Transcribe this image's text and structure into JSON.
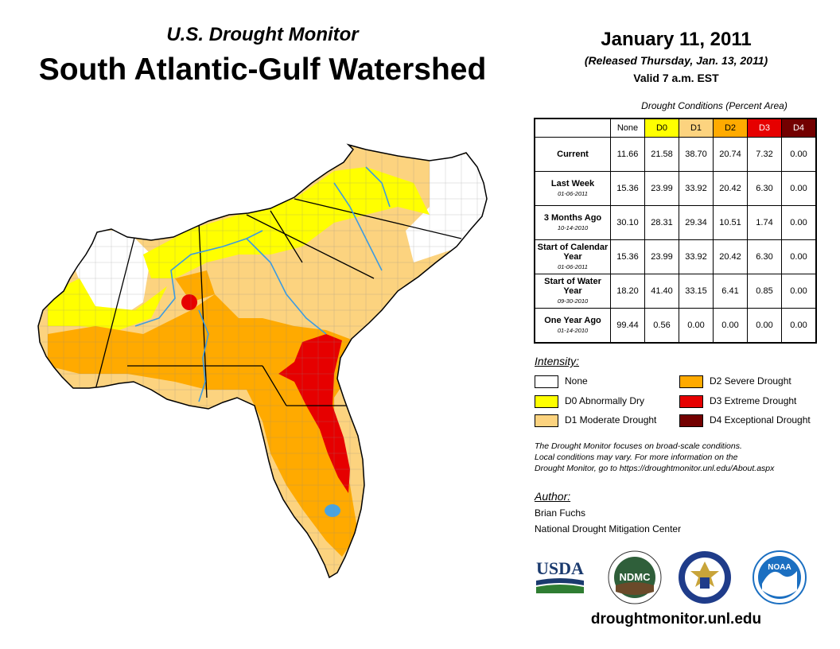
{
  "header": {
    "subtitle": "U.S. Drought Monitor",
    "title": "South Atlantic-Gulf Watershed"
  },
  "release": {
    "date": "January 11, 2011",
    "released": "(Released Thursday, Jan. 13, 2011)",
    "valid": "Valid 7 a.m. EST"
  },
  "conditions": {
    "title": "Drought Conditions (Percent Area)",
    "columns": [
      {
        "label": "None",
        "color": "#ffffff",
        "text_color": "#000000"
      },
      {
        "label": "D0",
        "color": "#ffff00",
        "text_color": "#000000"
      },
      {
        "label": "D1",
        "color": "#fcd37f",
        "text_color": "#000000"
      },
      {
        "label": "D2",
        "color": "#ffaa00",
        "text_color": "#000000"
      },
      {
        "label": "D3",
        "color": "#e60000",
        "text_color": "#ffffff"
      },
      {
        "label": "D4",
        "color": "#730000",
        "text_color": "#ffffff"
      }
    ],
    "rows": [
      {
        "label": "Current",
        "sub": "",
        "values": [
          "11.66",
          "21.58",
          "38.70",
          "20.74",
          "7.32",
          "0.00"
        ]
      },
      {
        "label": "Last Week",
        "sub": "01-06-2011",
        "values": [
          "15.36",
          "23.99",
          "33.92",
          "20.42",
          "6.30",
          "0.00"
        ]
      },
      {
        "label": "3 Months Ago",
        "sub": "10-14-2010",
        "values": [
          "30.10",
          "28.31",
          "29.34",
          "10.51",
          "1.74",
          "0.00"
        ]
      },
      {
        "label": "Start of Calendar Year",
        "sub": "01-06-2011",
        "values": [
          "15.36",
          "23.99",
          "33.92",
          "20.42",
          "6.30",
          "0.00"
        ]
      },
      {
        "label": "Start of Water Year",
        "sub": "09-30-2010",
        "values": [
          "18.20",
          "41.40",
          "33.15",
          "6.41",
          "0.85",
          "0.00"
        ]
      },
      {
        "label": "One Year Ago",
        "sub": "01-14-2010",
        "values": [
          "99.44",
          "0.56",
          "0.00",
          "0.00",
          "0.00",
          "0.00"
        ]
      }
    ]
  },
  "legend": {
    "title": "Intensity:",
    "items": [
      {
        "label": "None",
        "color": "#ffffff"
      },
      {
        "label": "D0 Abnormally Dry",
        "color": "#ffff00"
      },
      {
        "label": "D1 Moderate Drought",
        "color": "#fcd37f"
      },
      {
        "label": "D2 Severe Drought",
        "color": "#ffaa00"
      },
      {
        "label": "D3 Extreme Drought",
        "color": "#e60000"
      },
      {
        "label": "D4 Exceptional Drought",
        "color": "#730000"
      }
    ]
  },
  "note": {
    "line1": "The Drought Monitor focuses on broad-scale conditions.",
    "line2": "Local conditions may vary. For more information on the",
    "line3": "Drought Monitor, go to https://droughtmonitor.unl.edu/About.aspx"
  },
  "author": {
    "heading": "Author:",
    "name": "Brian Fuchs",
    "org": "National Drought Mitigation Center"
  },
  "logos": {
    "usda": "USDA",
    "ndmc": "NDMC",
    "noaa": "NOAA"
  },
  "footer": {
    "site": "droughtmonitor.unl.edu"
  }
}
